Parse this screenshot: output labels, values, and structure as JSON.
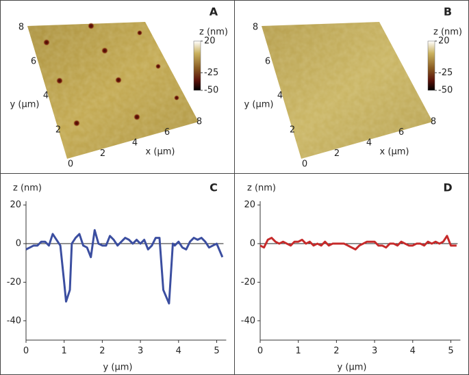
{
  "chart_data": [
    {
      "type": "surface",
      "label": "A",
      "xlabel": "x (μm)",
      "ylabel": "y (μm)",
      "xlim": [
        0,
        8
      ],
      "ylim": [
        0,
        8
      ],
      "xticks": [
        0,
        2,
        4,
        6,
        8
      ],
      "yticks": [
        0,
        2,
        4,
        6,
        8
      ],
      "colorbar": {
        "label": "z (nm)",
        "lim": [
          -50,
          20
        ],
        "ticks": [
          20,
          -25,
          -50
        ]
      }
    },
    {
      "type": "surface",
      "label": "B",
      "xlabel": "x (μm)",
      "ylabel": "y (μm)",
      "xlim": [
        0,
        8
      ],
      "ylim": [
        0,
        8
      ],
      "xticks": [
        0,
        2,
        4,
        6,
        8
      ],
      "yticks": [
        0,
        2,
        4,
        6,
        8
      ],
      "colorbar": {
        "label": "z (nm)",
        "lim": [
          -50,
          20
        ],
        "ticks": [
          20,
          -25,
          -50
        ]
      }
    },
    {
      "type": "line",
      "label": "C",
      "xlabel": "y (μm)",
      "ylabel": "z (nm)",
      "xlim": [
        0,
        5.25
      ],
      "ylim": [
        -50,
        22
      ],
      "xticks": [
        0,
        1,
        2,
        3,
        4,
        5
      ],
      "yticks": [
        20,
        0,
        -20,
        -40
      ],
      "hline": 0,
      "x": [
        0,
        0.1,
        0.2,
        0.3,
        0.4,
        0.5,
        0.6,
        0.7,
        0.8,
        0.9,
        1.0,
        1.05,
        1.15,
        1.2,
        1.3,
        1.4,
        1.5,
        1.6,
        1.7,
        1.8,
        1.9,
        2.0,
        2.1,
        2.2,
        2.3,
        2.4,
        2.5,
        2.6,
        2.7,
        2.8,
        2.9,
        3.0,
        3.1,
        3.2,
        3.3,
        3.4,
        3.5,
        3.6,
        3.75,
        3.85,
        3.9,
        4.0,
        4.1,
        4.2,
        4.3,
        4.4,
        4.5,
        4.6,
        4.7,
        4.8,
        4.9,
        5.0,
        5.15
      ],
      "series": [
        {
          "color": "#3b4ea0",
          "values": [
            -3,
            -2,
            -1,
            -1,
            1,
            1,
            -1,
            5,
            2,
            -1,
            -20,
            -30,
            -24,
            0,
            3,
            5,
            -1,
            -2,
            -7,
            7,
            0,
            -1,
            -1,
            4,
            2,
            -1,
            1,
            3,
            2,
            0,
            2,
            0,
            2,
            -3,
            -1,
            3,
            3,
            -24,
            -31,
            0,
            -1,
            1,
            -2,
            -3,
            1,
            3,
            2,
            3,
            1,
            -2,
            -1,
            0,
            -7
          ]
        }
      ]
    },
    {
      "type": "line",
      "label": "D",
      "xlabel": "y (μm)",
      "ylabel": "z (nm)",
      "xlim": [
        0,
        5.25
      ],
      "ylim": [
        -50,
        22
      ],
      "xticks": [
        0,
        1,
        2,
        3,
        4,
        5
      ],
      "yticks": [
        20,
        0,
        -20,
        -40
      ],
      "hline": 0,
      "x": [
        0,
        0.1,
        0.2,
        0.3,
        0.4,
        0.5,
        0.6,
        0.7,
        0.8,
        0.9,
        1.0,
        1.1,
        1.2,
        1.3,
        1.4,
        1.5,
        1.6,
        1.7,
        1.8,
        1.9,
        2.0,
        2.1,
        2.2,
        2.3,
        2.4,
        2.5,
        2.6,
        2.7,
        2.8,
        2.9,
        3.0,
        3.1,
        3.2,
        3.3,
        3.4,
        3.5,
        3.6,
        3.7,
        3.8,
        3.9,
        4.0,
        4.1,
        4.2,
        4.3,
        4.4,
        4.5,
        4.6,
        4.7,
        4.8,
        4.9,
        5.0,
        5.1,
        5.15
      ],
      "series": [
        {
          "color": "#c62a2a",
          "values": [
            -1,
            -2,
            2,
            3,
            1,
            0,
            1,
            0,
            -1,
            1,
            1,
            2,
            0,
            1,
            -1,
            0,
            -1,
            1,
            -1,
            0,
            0,
            0,
            0,
            -1,
            -2,
            -3,
            -1,
            0,
            1,
            1,
            1,
            -1,
            -1,
            -2,
            0,
            0,
            -1,
            1,
            0,
            -1,
            -1,
            0,
            0,
            -1,
            1,
            0,
            1,
            0,
            1,
            4,
            -1,
            -1,
            -1
          ]
        }
      ]
    }
  ]
}
